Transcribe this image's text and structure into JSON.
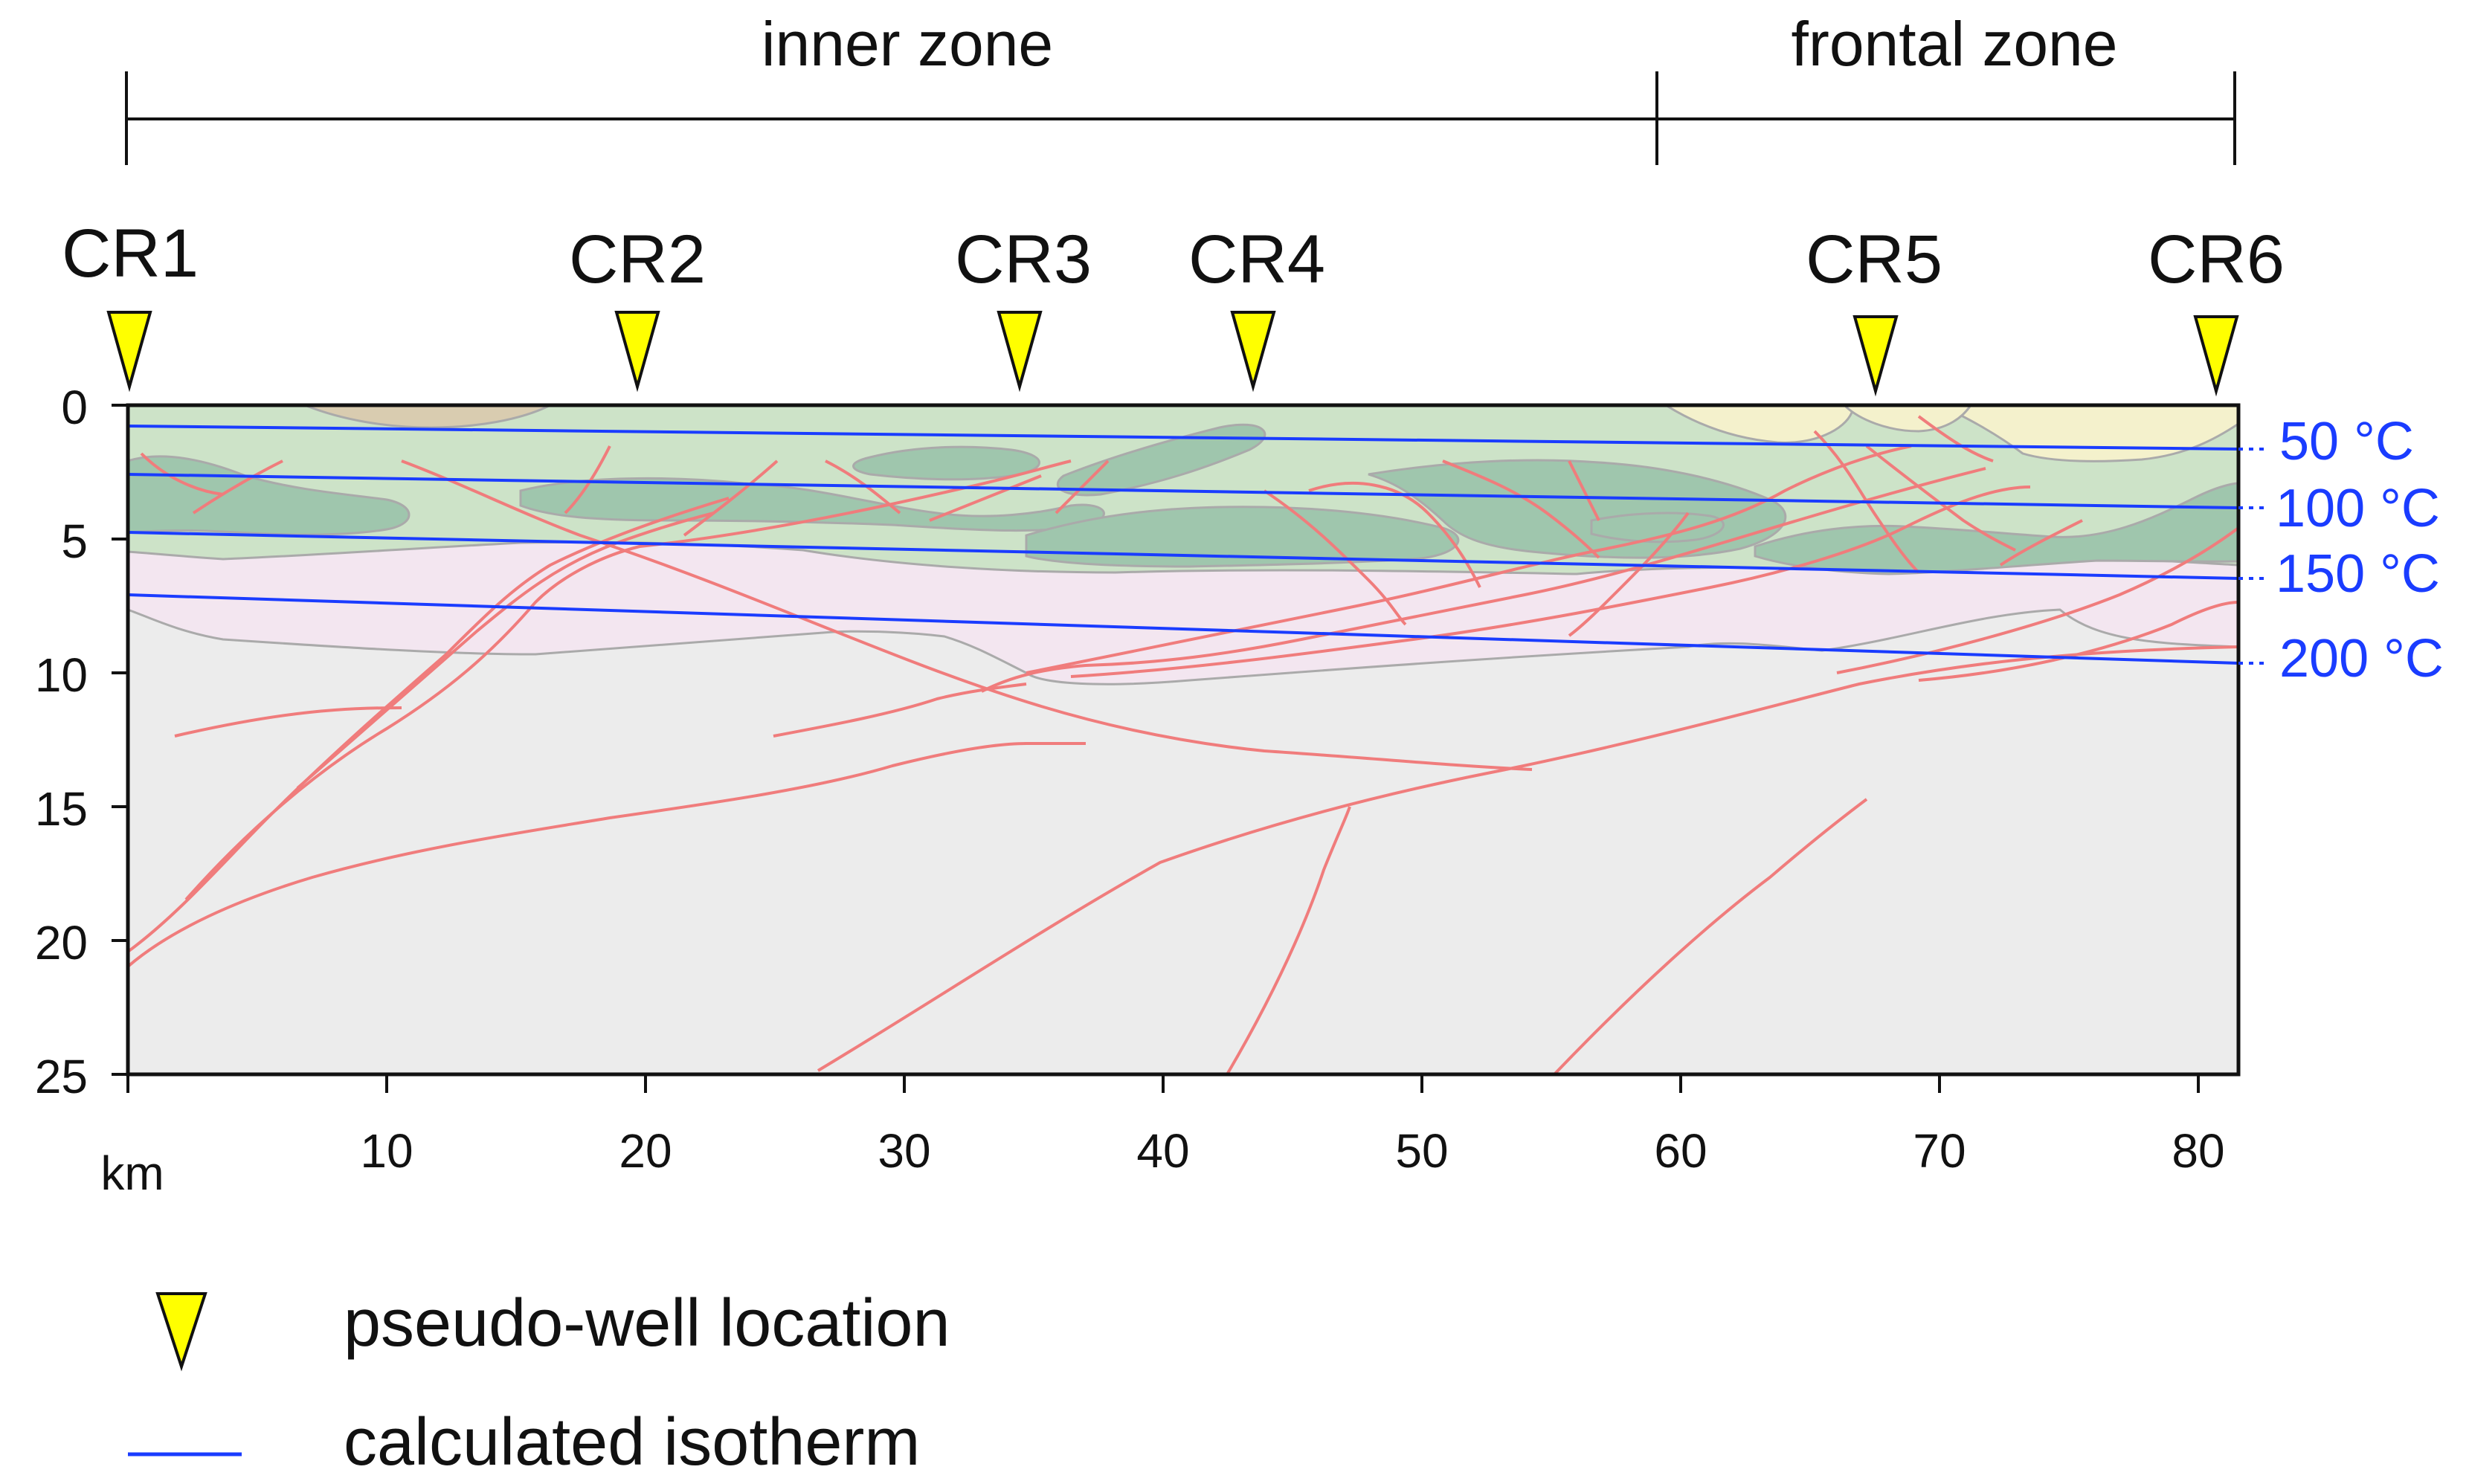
{
  "zones": [
    {
      "label": "inner zone",
      "from_km": 0,
      "to_km": 59.2
    },
    {
      "label": "frontal zone",
      "from_km": 59.2,
      "to_km": 81.6
    }
  ],
  "wells": [
    {
      "label": "CR1",
      "km": 0
    },
    {
      "label": "CR2",
      "km": 19.8
    },
    {
      "label": "CR3",
      "km": 34.8
    },
    {
      "label": "CR4",
      "km": 43.7
    },
    {
      "label": "CR5",
      "km": 67.7
    },
    {
      "label": "CR6",
      "km": 80.9
    }
  ],
  "axes": {
    "x_unit": "km",
    "x_ticks": [
      "10",
      "20",
      "30",
      "40",
      "50",
      "60",
      "70",
      "80"
    ],
    "y_ticks": [
      "0",
      "5",
      "10",
      "15",
      "20",
      "25"
    ]
  },
  "isotherms": [
    {
      "label": "50 °C",
      "depth_left_km": 0.8,
      "depth_right_km": 1.6
    },
    {
      "label": "100 °C",
      "depth_left_km": 2.7,
      "depth_right_km": 3.8
    },
    {
      "label": "150 °C",
      "depth_left_km": 4.6,
      "depth_right_km": 6.5
    },
    {
      "label": "200 °C",
      "depth_left_km": 7.1,
      "depth_right_km": 9.6
    }
  ],
  "legend": {
    "well_label": "pseudo-well location",
    "isotherm_label": "calculated isotherm"
  },
  "colors": {
    "basement": "#ececec",
    "pink_layer": "#f3e6f0",
    "light_green": "#cde3c8",
    "dark_green": "#9fc6ad",
    "tan": "#d9ccb0",
    "cream": "#f4f1cc",
    "fault": "#f07c7c",
    "isotherm": "#1a3cff",
    "well_marker": "#ffff00"
  }
}
